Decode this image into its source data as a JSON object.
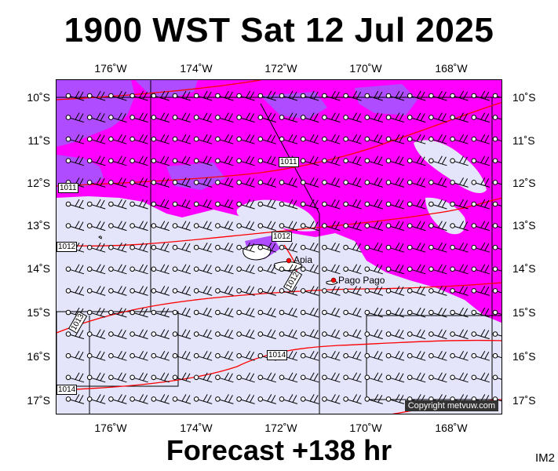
{
  "title": "1900 WST Sat 12 Jul 2025",
  "subtitle": "Forecast +138 hr",
  "model_code": "IM2",
  "copyright": "Copyright metvuw.com",
  "longitude_labels": [
    "176˚W",
    "174˚W",
    "172˚W",
    "170˚W",
    "168˚W"
  ],
  "latitude_labels": [
    "10˚S",
    "11˚S",
    "12˚S",
    "13˚S",
    "14˚S",
    "15˚S",
    "16˚S",
    "17˚S"
  ],
  "cities": [
    {
      "name": "Apia"
    },
    {
      "name": "Pago Pago"
    }
  ],
  "isobars": [
    {
      "label": "1011"
    },
    {
      "label": "1011"
    },
    {
      "label": "1012"
    },
    {
      "label": "1012"
    },
    {
      "label": "1012"
    },
    {
      "label": "1013"
    },
    {
      "label": "1014"
    },
    {
      "label": "1014"
    }
  ],
  "colors": {
    "background": "#ffffff",
    "map_base": "#e4e4fa",
    "precip_magenta": "#ff00ff",
    "precip_purple": "#b04cff",
    "isobar": "#ff0000",
    "land": "#ffffff",
    "city_dot": "#ff0000"
  }
}
